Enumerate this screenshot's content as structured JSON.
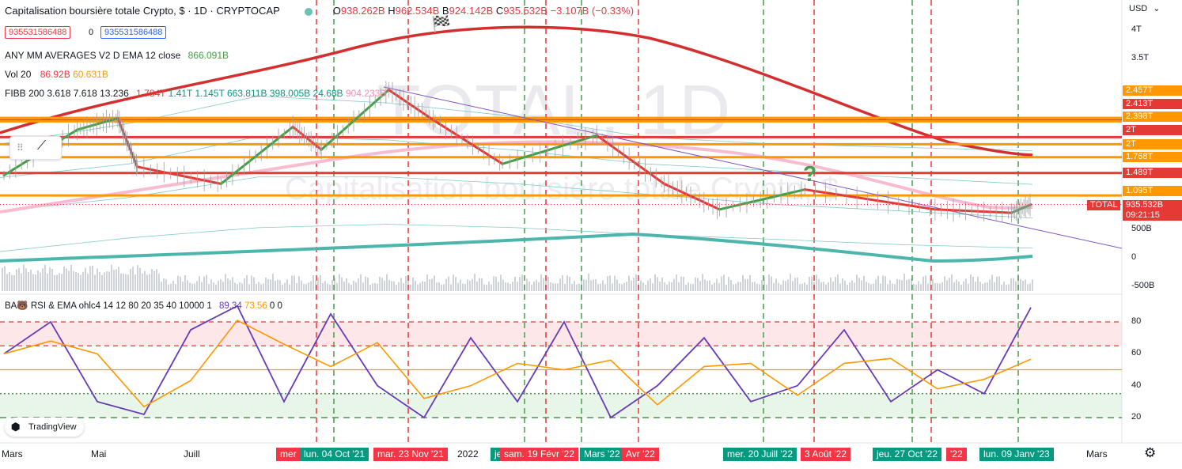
{
  "header": {
    "title": "Capitalisation boursière totale Crypto, $ · 1D · CRYPTOCAP",
    "ohlc": {
      "o_label": "O",
      "o": "938.262B",
      "h_label": "H",
      "h": "962.534B",
      "l_label": "B",
      "l": "924.142B",
      "c_label": "C",
      "c": "935.532B",
      "chg": "−3.107B (−0.33%)"
    },
    "sell_price": "935531586488",
    "spread": "0",
    "buy_price": "935531586488"
  },
  "indicators": {
    "ema": {
      "label": "ANY MM AVERAGES V2 D EMA 12 close",
      "value": "866.091B"
    },
    "vol": {
      "label": "Vol 20",
      "v1": "86.92B",
      "v2": "60.631B"
    },
    "fibb": {
      "label": "FIBB 200 3.618 7.618 13.236",
      "vals": [
        "1.784T",
        "1.41T",
        "1.145T",
        "663.811B",
        "398.005B",
        "24.68B",
        "904.233B"
      ]
    },
    "rsi": {
      "label": "BA🐻 RSI & EMA ohlc4 14 12 80 20 35 40 10000 1",
      "v1": "89.34",
      "v2": "73.56",
      "v3": "0",
      "v4": "0"
    }
  },
  "watermark": {
    "big": "TOTAL, 1D",
    "sub": "Capitalisation boursière totale Crypto, $"
  },
  "currency": "USD",
  "price_axis": {
    "ticks": [
      {
        "label": "4T",
        "v": 4000
      },
      {
        "label": "3.5T",
        "v": 3500
      },
      {
        "label": "500B",
        "v": 500
      },
      {
        "label": "0",
        "v": 0
      },
      {
        "label": "-500B",
        "v": -500
      }
    ],
    "tags": [
      {
        "label": "2.457T",
        "v": 2457,
        "color": "#ff9800"
      },
      {
        "label": "2.413T",
        "v": 2413,
        "color": "#e53935"
      },
      {
        "label": "2.398T",
        "v": 2398,
        "color": "#ff9800"
      },
      {
        "label": "2T",
        "v": 2120,
        "color": "#e53935"
      },
      {
        "label": "2T",
        "v": 1995,
        "color": "#ff9800"
      },
      {
        "label": "1.768T",
        "v": 1768,
        "color": "#ff9800"
      },
      {
        "label": "1.489T",
        "v": 1489,
        "color": "#e53935"
      },
      {
        "label": "1.095T",
        "v": 1095,
        "color": "#ff9800"
      },
      {
        "label": "TOTAL",
        "v": 935,
        "color": "#e53935"
      },
      {
        "label": "935.532B",
        "v": 935,
        "color": "#e53935"
      },
      {
        "label": "09:21:15",
        "v": 935,
        "color": "#e53935"
      }
    ]
  },
  "rsi_axis": [
    {
      "label": "80",
      "v": 80
    },
    {
      "label": "60",
      "v": 60
    },
    {
      "label": "40",
      "v": 40
    },
    {
      "label": "20",
      "v": 20
    }
  ],
  "time_axis": [
    {
      "label": "Mars",
      "x": 14
    },
    {
      "label": "Mai",
      "x": 127
    },
    {
      "label": "Juill",
      "x": 244
    },
    {
      "label": "2022",
      "x": 590
    },
    {
      "label": "Mars",
      "x": 1385
    }
  ],
  "time_tags": [
    {
      "label": "mer",
      "x": 349,
      "color": "#f23645"
    },
    {
      "label": "lun. 04 Oct '21",
      "x": 379,
      "color": "#089981"
    },
    {
      "label": "mar. 23 Nov '21",
      "x": 472,
      "color": "#f23645"
    },
    {
      "label": "je",
      "x": 620,
      "color": "#089981"
    },
    {
      "label": "sam. 19 Févr '22",
      "x": 632,
      "color": "#f23645"
    },
    {
      "label": "Mars '22",
      "x": 733,
      "color": "#089981"
    },
    {
      "label": "Avr '22",
      "x": 786,
      "color": "#f23645"
    },
    {
      "label": "mer. 20 Juill '22",
      "x": 914,
      "color": "#089981"
    },
    {
      "label": "3 Août '22",
      "x": 1012,
      "color": "#f23645"
    },
    {
      "label": "jeu. 27 Oct '22",
      "x": 1103,
      "color": "#089981"
    },
    {
      "label": "'22",
      "x": 1196,
      "color": "#f23645"
    },
    {
      "label": "lun. 09 Janv '23",
      "x": 1238,
      "color": "#089981"
    }
  ],
  "hlines": [
    {
      "v": 2457,
      "color": "#ff9800"
    },
    {
      "v": 2413,
      "color": "#e53935"
    },
    {
      "v": 2398,
      "color": "#ff9800"
    },
    {
      "v": 2120,
      "color": "#e53935"
    },
    {
      "v": 1995,
      "color": "#ff9800"
    },
    {
      "v": 1768,
      "color": "#ff9800"
    },
    {
      "v": 1489,
      "color": "#e53935"
    },
    {
      "v": 1095,
      "color": "#ff9800"
    }
  ],
  "vlines": [
    {
      "x": 400,
      "color": "#e53935"
    },
    {
      "x": 422,
      "color": "#43a047"
    },
    {
      "x": 516,
      "color": "#e53935"
    },
    {
      "x": 663,
      "color": "#43a047"
    },
    {
      "x": 690,
      "color": "#e53935"
    },
    {
      "x": 735,
      "color": "#43a047"
    },
    {
      "x": 807,
      "color": "#e53935"
    },
    {
      "x": 965,
      "color": "#43a047"
    },
    {
      "x": 1029,
      "color": "#e53935"
    },
    {
      "x": 1153,
      "color": "#43a047"
    },
    {
      "x": 1177,
      "color": "#e53935"
    },
    {
      "x": 1287,
      "color": "#43a047"
    }
  ],
  "annotation": "?",
  "branding": "TradingView",
  "chart_data": {
    "type": "line",
    "title": "Capitalisation boursière totale Crypto, $",
    "x_range": [
      "2021-02-25",
      "2023-01-12"
    ],
    "price_series": [
      {
        "date": "2021-02-25",
        "v": 1450
      },
      {
        "date": "2021-04-15",
        "v": 2250
      },
      {
        "date": "2021-05-12",
        "v": 2450
      },
      {
        "date": "2021-05-25",
        "v": 1600
      },
      {
        "date": "2021-07-20",
        "v": 1300
      },
      {
        "date": "2021-09-06",
        "v": 2300
      },
      {
        "date": "2021-09-25",
        "v": 1900
      },
      {
        "date": "2021-11-09",
        "v": 2950
      },
      {
        "date": "2021-12-10",
        "v": 2400
      },
      {
        "date": "2022-01-24",
        "v": 1650
      },
      {
        "date": "2022-03-28",
        "v": 2150
      },
      {
        "date": "2022-05-12",
        "v": 1300
      },
      {
        "date": "2022-06-18",
        "v": 850
      },
      {
        "date": "2022-08-14",
        "v": 1200
      },
      {
        "date": "2022-11-09",
        "v": 850
      },
      {
        "date": "2022-12-30",
        "v": 790
      },
      {
        "date": "2023-01-12",
        "v": 935
      }
    ],
    "rsi_series": [
      60,
      80,
      30,
      22,
      75,
      90,
      30,
      85,
      40,
      20,
      70,
      30,
      80,
      20,
      40,
      70,
      30,
      40,
      75,
      30,
      50,
      35,
      89
    ]
  }
}
